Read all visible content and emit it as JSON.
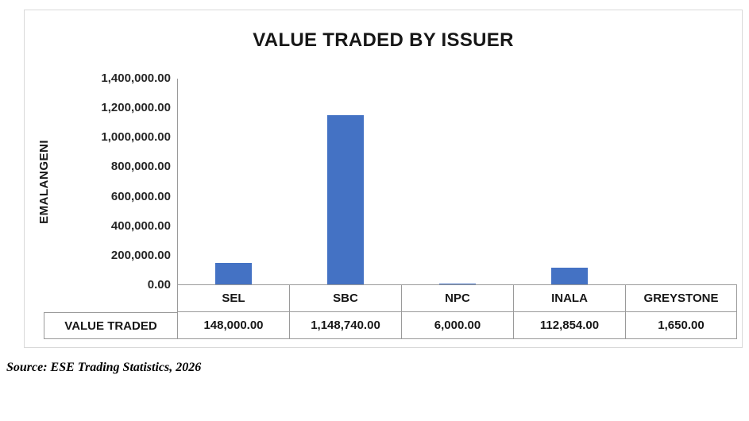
{
  "chart_data": {
    "type": "bar",
    "title": "VALUE TRADED BY ISSUER",
    "ylabel": "EMALANGENI",
    "xlabel": "",
    "categories": [
      "SEL",
      "SBC",
      "NPC",
      "INALA",
      "GREYSTONE"
    ],
    "series": [
      {
        "name": "VALUE TRADED",
        "values": [
          148000,
          1148740,
          6000,
          112854,
          1650
        ]
      }
    ],
    "ylim": [
      0,
      1400000
    ],
    "ytick_step": 200000,
    "ytick_labels": [
      "0.00",
      "200,000.00",
      "400,000.00",
      "600,000.00",
      "800,000.00",
      "1,000,000.00",
      "1,200,000.00",
      "1,400,000.00"
    ],
    "grid": false,
    "legend": "none",
    "bar_color": "#4472C4",
    "data_table": {
      "row_label": "VALUE TRADED",
      "formatted_values": [
        "148,000.00",
        "1,148,740.00",
        "6,000.00",
        "112,854.00",
        "1,650.00"
      ]
    }
  },
  "source_note": "Source: ESE Trading Statistics, 2026"
}
